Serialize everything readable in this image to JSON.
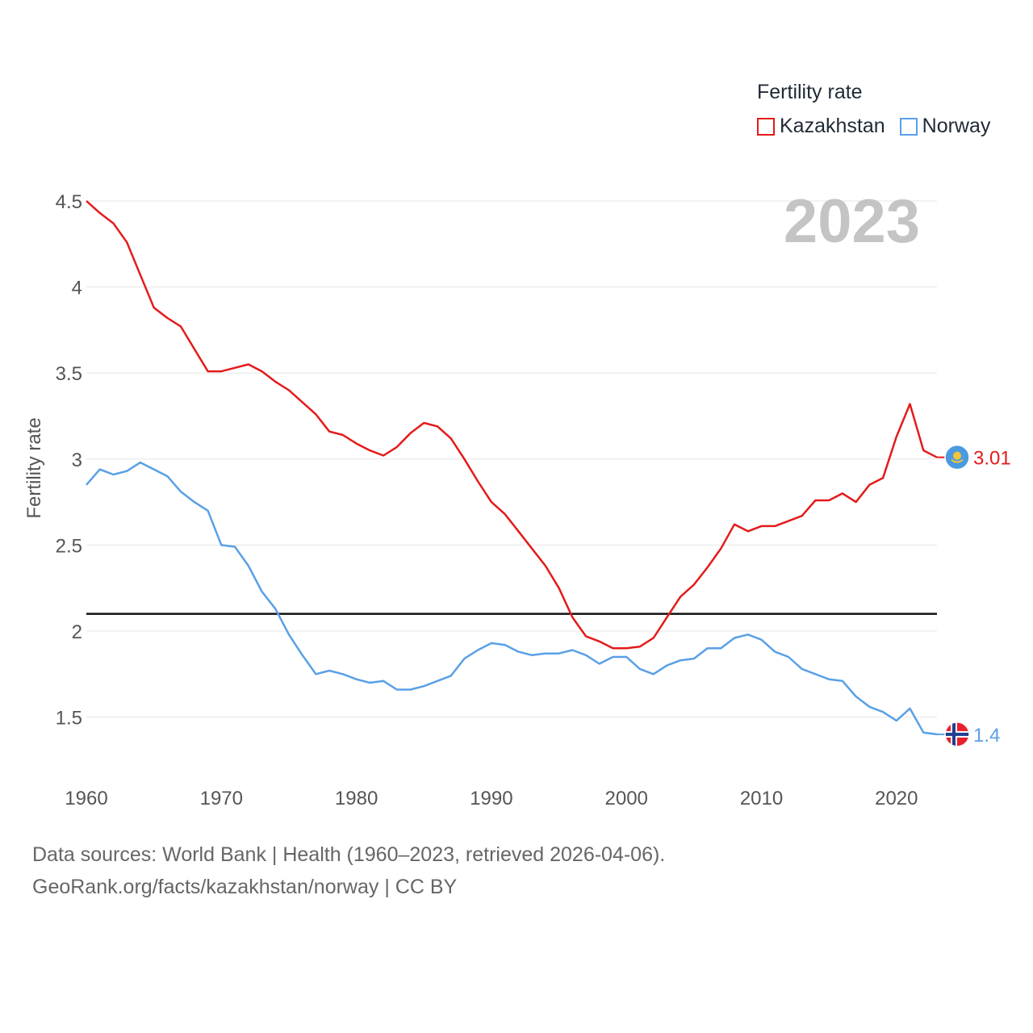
{
  "legend": {
    "title": "Fertility rate",
    "items": [
      {
        "label": "Kazakhstan",
        "color": "#e31b1b"
      },
      {
        "label": "Norway",
        "color": "#5aa0e6"
      }
    ]
  },
  "year_watermark": "2023",
  "source": {
    "line1": "Data sources: World Bank | Health (1960–2023, retrieved 2026-04-06).",
    "line2": "GeoRank.org/facts/kazakhstan/norway | CC BY"
  },
  "chart_data": {
    "type": "line",
    "title": "",
    "xlabel": "",
    "ylabel": "Fertility rate",
    "xlim": [
      1960,
      2023
    ],
    "ylim": [
      1.2,
      4.5
    ],
    "xticks": [
      1960,
      1970,
      1980,
      1990,
      2000,
      2010,
      2020
    ],
    "yticks": [
      1.5,
      2,
      2.5,
      3,
      3.5,
      4,
      4.5
    ],
    "ytick_labels": [
      "1.5",
      "2",
      "2.5",
      "3",
      "3.5",
      "4",
      "4.5"
    ],
    "reference_line": {
      "y": 2.1,
      "color": "#111111"
    },
    "x": [
      1960,
      1961,
      1962,
      1963,
      1964,
      1965,
      1966,
      1967,
      1968,
      1969,
      1970,
      1971,
      1972,
      1973,
      1974,
      1975,
      1976,
      1977,
      1978,
      1979,
      1980,
      1981,
      1982,
      1983,
      1984,
      1985,
      1986,
      1987,
      1988,
      1989,
      1990,
      1991,
      1992,
      1993,
      1994,
      1995,
      1996,
      1997,
      1998,
      1999,
      2000,
      2001,
      2002,
      2003,
      2004,
      2005,
      2006,
      2007,
      2008,
      2009,
      2010,
      2011,
      2012,
      2013,
      2014,
      2015,
      2016,
      2017,
      2018,
      2019,
      2020,
      2021,
      2022,
      2023
    ],
    "series": [
      {
        "name": "Kazakhstan",
        "color": "#e31b1b",
        "end_label": "3.01",
        "values": [
          4.5,
          4.43,
          4.37,
          4.26,
          4.07,
          3.88,
          3.82,
          3.77,
          3.64,
          3.51,
          3.51,
          3.53,
          3.55,
          3.51,
          3.45,
          3.4,
          3.33,
          3.26,
          3.16,
          3.14,
          3.09,
          3.05,
          3.02,
          3.07,
          3.15,
          3.21,
          3.19,
          3.12,
          3.0,
          2.87,
          2.75,
          2.68,
          2.58,
          2.48,
          2.38,
          2.25,
          2.08,
          1.97,
          1.94,
          1.9,
          1.9,
          1.91,
          1.96,
          2.08,
          2.2,
          2.27,
          2.37,
          2.48,
          2.62,
          2.58,
          2.61,
          2.61,
          2.64,
          2.67,
          2.76,
          2.76,
          2.8,
          2.75,
          2.85,
          2.89,
          3.13,
          3.32,
          3.05,
          3.01
        ]
      },
      {
        "name": "Norway",
        "color": "#5aa0e6",
        "end_label": "1.4",
        "values": [
          2.85,
          2.94,
          2.91,
          2.93,
          2.98,
          2.94,
          2.9,
          2.81,
          2.75,
          2.7,
          2.5,
          2.49,
          2.38,
          2.23,
          2.13,
          1.98,
          1.86,
          1.75,
          1.77,
          1.75,
          1.72,
          1.7,
          1.71,
          1.66,
          1.66,
          1.68,
          1.71,
          1.74,
          1.84,
          1.89,
          1.93,
          1.92,
          1.88,
          1.86,
          1.87,
          1.87,
          1.89,
          1.86,
          1.81,
          1.85,
          1.85,
          1.78,
          1.75,
          1.8,
          1.83,
          1.84,
          1.9,
          1.9,
          1.96,
          1.98,
          1.95,
          1.88,
          1.85,
          1.78,
          1.75,
          1.72,
          1.71,
          1.62,
          1.56,
          1.53,
          1.48,
          1.55,
          1.41,
          1.4
        ]
      }
    ]
  }
}
